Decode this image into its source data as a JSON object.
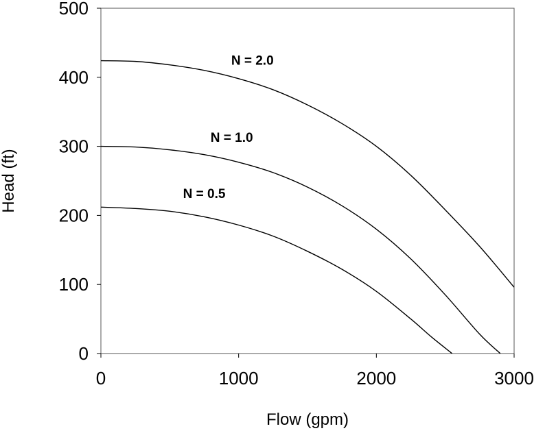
{
  "chart_data": {
    "type": "line",
    "title": "",
    "xlabel": "Flow (gpm)",
    "ylabel": "Head (ft)",
    "xlim": [
      0,
      3000
    ],
    "ylim": [
      0,
      500
    ],
    "xticks": [
      0,
      1000,
      2000,
      3000
    ],
    "yticks": [
      0,
      100,
      200,
      300,
      400,
      500
    ],
    "grid": false,
    "series": [
      {
        "name": "N = 2.0",
        "x": [
          0,
          250,
          500,
          750,
          1000,
          1250,
          1500,
          1750,
          2000,
          2250,
          2500,
          2750,
          3000
        ],
        "y": [
          424,
          423,
          418,
          410,
          398,
          382,
          360,
          333,
          300,
          258,
          208,
          155,
          96
        ]
      },
      {
        "name": "N = 1.0",
        "x": [
          0,
          250,
          500,
          750,
          1000,
          1250,
          1500,
          1750,
          2000,
          2250,
          2500,
          2750,
          2900
        ],
        "y": [
          300,
          299,
          295,
          288,
          277,
          262,
          241,
          214,
          180,
          137,
          85,
          28,
          0
        ]
      },
      {
        "name": "N = 0.5",
        "x": [
          0,
          250,
          500,
          750,
          1000,
          1250,
          1500,
          1750,
          2000,
          2250,
          2400,
          2550
        ],
        "y": [
          212,
          210,
          206,
          198,
          186,
          170,
          148,
          122,
          90,
          50,
          24,
          0
        ]
      }
    ]
  }
}
